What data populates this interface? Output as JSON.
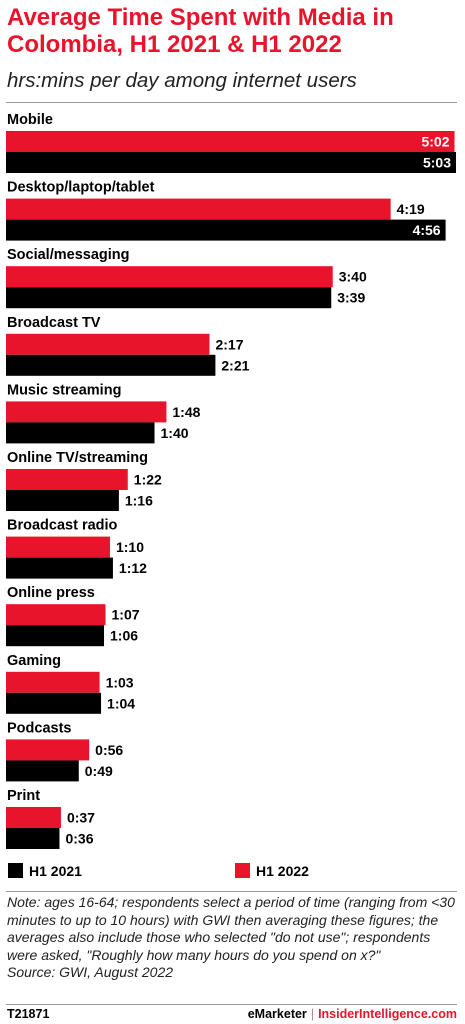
{
  "colors": {
    "h1_2022": "#e8142b",
    "h1_2021": "#000000"
  },
  "chart_data": {
    "type": "bar",
    "orientation": "horizontal",
    "title": "Average Time Spent with Media in Colombia, H1 2021 & H1 2022",
    "subtitle": "hrs:mins per day among internet users",
    "categories": [
      "Mobile",
      "Desktop/laptop/tablet",
      "Social/messaging",
      "Broadcast TV",
      "Music streaming",
      "Online TV/streaming",
      "Broadcast radio",
      "Online press",
      "Gaming",
      "Podcasts",
      "Print"
    ],
    "series": [
      {
        "name": "H1 2022",
        "color": "#e8142b",
        "values": [
          302,
          259,
          220,
          137,
          108,
          82,
          70,
          67,
          63,
          56,
          37
        ],
        "labels": [
          "5:02",
          "4:19",
          "3:40",
          "2:17",
          "1:48",
          "1:22",
          "1:10",
          "1:07",
          "1:03",
          "0:56",
          "0:37"
        ]
      },
      {
        "name": "H1 2021",
        "color": "#000000",
        "values": [
          303,
          296,
          219,
          141,
          100,
          76,
          72,
          66,
          64,
          49,
          36
        ],
        "labels": [
          "5:03",
          "4:56",
          "3:39",
          "2:21",
          "1:40",
          "1:16",
          "1:12",
          "1:06",
          "1:04",
          "0:49",
          "0:36"
        ]
      }
    ],
    "value_unit": "minutes",
    "legend": [
      {
        "name": "H1 2021",
        "color": "#000000"
      },
      {
        "name": "H1 2022",
        "color": "#e8142b"
      }
    ],
    "legend_position": "bottom",
    "grid": false
  },
  "note": "Note: ages 16-64; respondents select a period of time (ranging from <30 minutes to up to 10 hours) with GWI then averaging these figures; the averages also include those who selected \"do not use\"; respondents were asked, \"Roughly how many hours do you spend on x?\"",
  "source": "Source:  GWI, August 2022",
  "footer": {
    "chart_id": "T21871",
    "brand1": "eMarketer",
    "separator": "|",
    "brand2": "InsiderIntelligence.com"
  }
}
